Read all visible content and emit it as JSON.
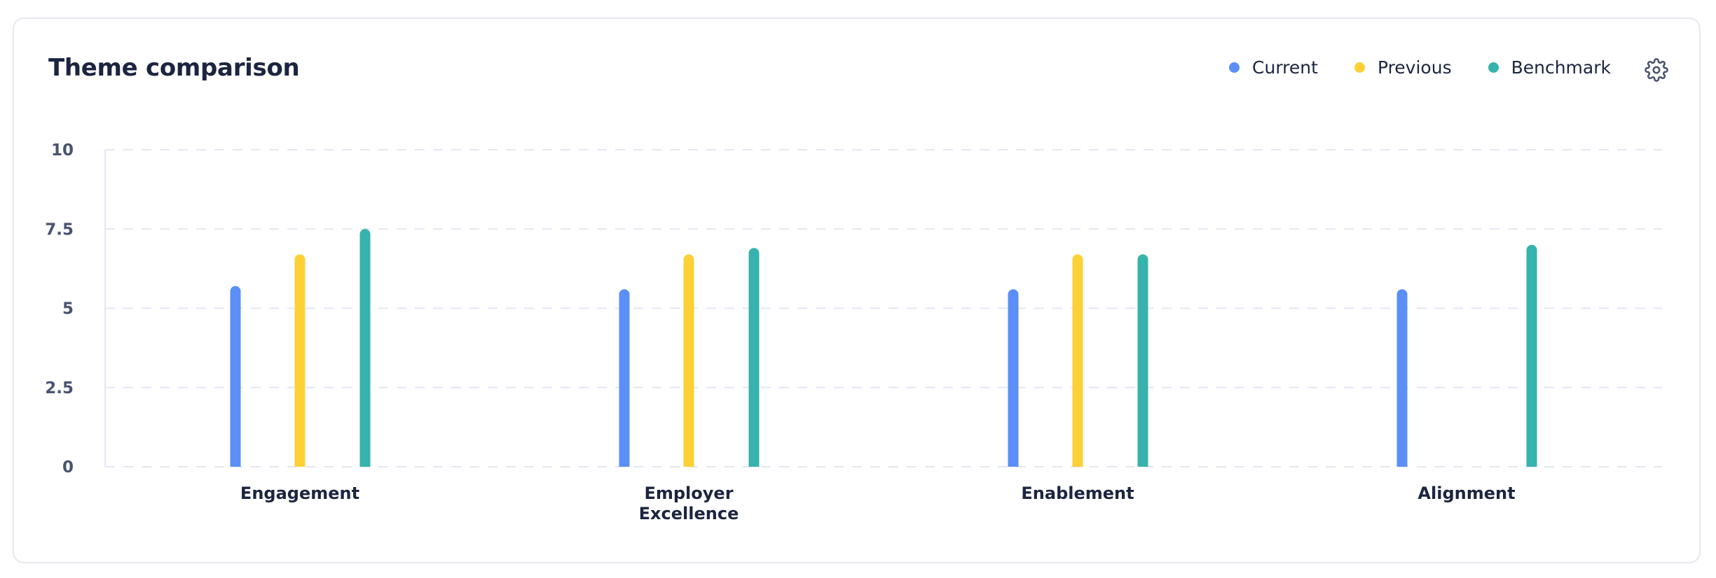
{
  "header": {
    "title": "Theme comparison"
  },
  "legend": [
    {
      "label": "Current",
      "color": "#5b8ff5"
    },
    {
      "label": "Previous",
      "color": "#fdd035"
    },
    {
      "label": "Benchmark",
      "color": "#35b3ac"
    }
  ],
  "icons": {
    "settings": "gear-icon"
  },
  "chart_data": {
    "type": "bar",
    "title": "Theme comparison",
    "categories": [
      [
        "Engagement"
      ],
      [
        "Employer",
        "Excellence"
      ],
      [
        "Enablement"
      ],
      [
        "Alignment"
      ]
    ],
    "series": [
      {
        "name": "Current",
        "color": "#5b8ff5",
        "values": [
          5.7,
          5.6,
          5.6,
          5.6
        ]
      },
      {
        "name": "Previous",
        "color": "#fdd035",
        "values": [
          6.7,
          6.7,
          6.7,
          null
        ]
      },
      {
        "name": "Benchmark",
        "color": "#35b3ac",
        "values": [
          7.5,
          6.9,
          6.7,
          7.0
        ]
      }
    ],
    "yticks": [
      "0",
      "2.5",
      "5",
      "7.5",
      "10"
    ],
    "ylim": [
      0,
      10
    ],
    "grid": true,
    "legend_position": "top-right"
  }
}
